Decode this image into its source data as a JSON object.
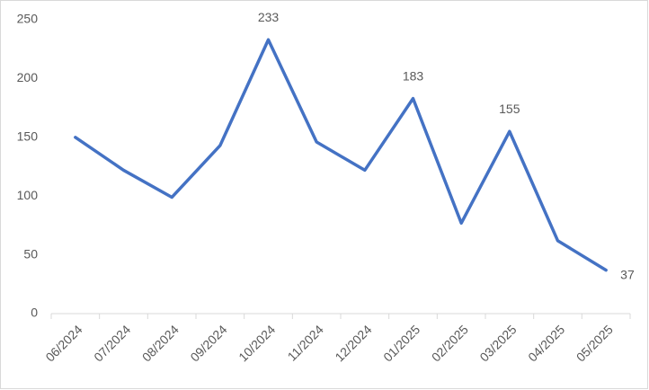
{
  "chart_data": {
    "type": "line",
    "categories": [
      "06/2024",
      "07/2024",
      "08/2024",
      "09/2024",
      "10/2024",
      "11/2024",
      "12/2024",
      "01/2025",
      "02/2025",
      "03/2025",
      "04/2025",
      "05/2025"
    ],
    "series": [
      {
        "color": "#4472c4",
        "values": [
          150,
          122,
          99,
          143,
          233,
          146,
          122,
          183,
          77,
          155,
          62,
          37
        ],
        "value_labels": [
          null,
          null,
          null,
          null,
          "233",
          null,
          null,
          "183",
          null,
          "155",
          null,
          "37"
        ]
      }
    ],
    "ylim": [
      0,
      250
    ],
    "yticks": [
      0,
      50,
      100,
      150,
      200,
      250
    ],
    "grid": false
  }
}
